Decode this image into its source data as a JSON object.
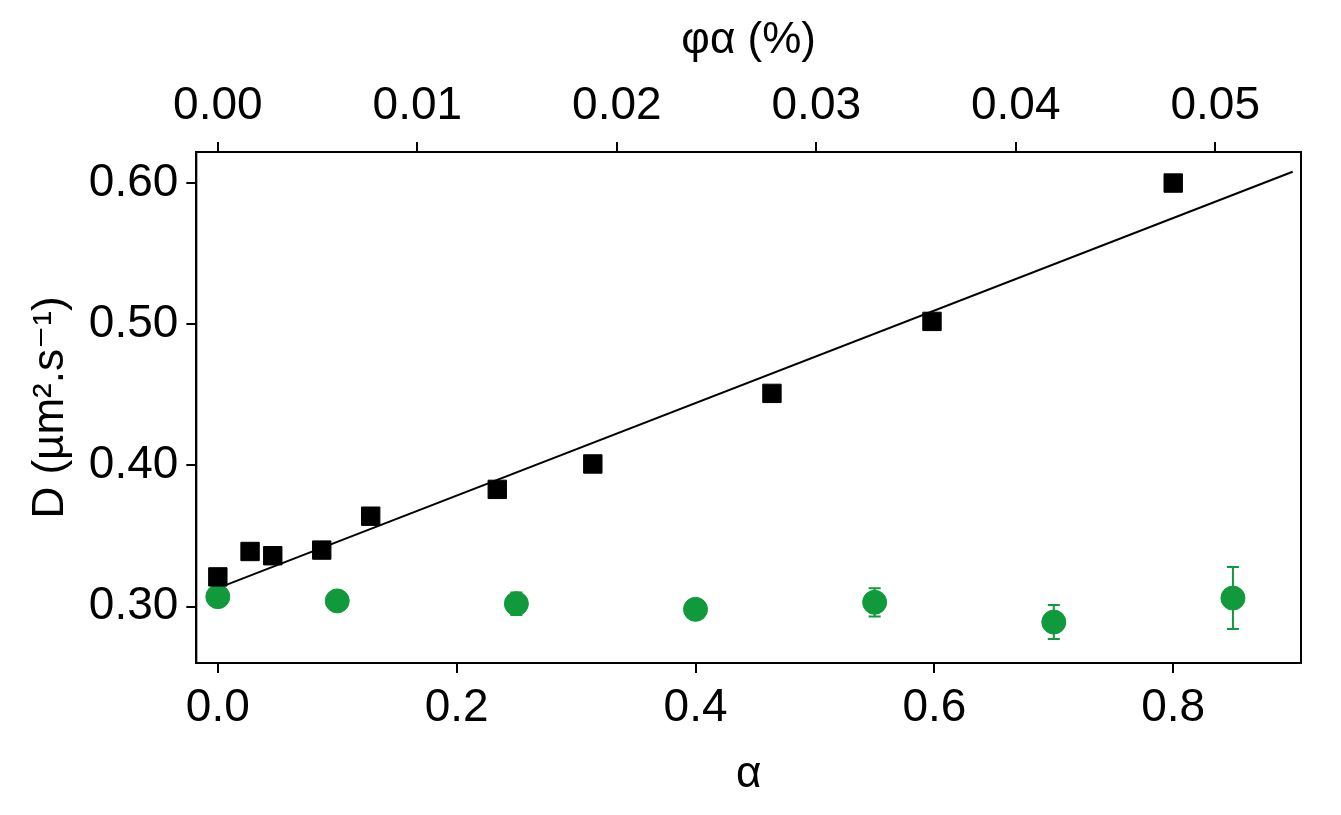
{
  "chart_data": {
    "type": "scatter",
    "x_label": "α",
    "x2_label": "φα (%)",
    "y_label": "D (µm².s⁻¹)",
    "xlim": [
      -0.018,
      0.907
    ],
    "xticks": [
      {
        "value": 0,
        "label": "0.0"
      },
      {
        "value": 0.2,
        "label": "0.2"
      },
      {
        "value": 0.4,
        "label": "0.4"
      },
      {
        "value": 0.6,
        "label": "0.6"
      },
      {
        "value": 0.8,
        "label": "0.8"
      }
    ],
    "x2lim": [
      -0.00108,
      0.0543
    ],
    "x2ticks": [
      {
        "value": 0,
        "label": "0.00"
      },
      {
        "value": 0.01,
        "label": "0.01"
      },
      {
        "value": 0.02,
        "label": "0.02"
      },
      {
        "value": 0.03,
        "label": "0.03"
      },
      {
        "value": 0.04,
        "label": "0.04"
      },
      {
        "value": 0.05,
        "label": "0.05"
      }
    ],
    "ylim": [
      0.26,
      0.622
    ],
    "yticks": [
      {
        "value": 0.3,
        "label": "0.30"
      },
      {
        "value": 0.4,
        "label": "0.40"
      },
      {
        "value": 0.5,
        "label": "0.50"
      },
      {
        "value": 0.6,
        "label": "0.60"
      }
    ],
    "grid": false,
    "series": [
      {
        "type": "scatter",
        "color": "#000000",
        "marker": "square",
        "x": [
          0,
          0.027,
          0.046,
          0.087,
          0.128,
          0.234,
          0.314,
          0.464,
          0.598,
          0.8
        ],
        "values": [
          0.321,
          0.339,
          0.336,
          0.34,
          0.364,
          0.383,
          0.401,
          0.451,
          0.502,
          0.6
        ]
      },
      {
        "type": "line",
        "color": "#000000",
        "line_style": "solid",
        "x": [
          0,
          0.9
        ],
        "values": [
          0.313,
          0.608
        ]
      },
      {
        "type": "scatter",
        "color": "#119a3c",
        "marker": "circle",
        "x": [
          0,
          0.1,
          0.25,
          0.4,
          0.55,
          0.7,
          0.85
        ],
        "values": [
          0.307,
          0.304,
          0.302,
          0.298,
          0.303,
          0.289,
          0.306
        ],
        "errors": [
          0.004,
          0.005,
          0.008,
          0.006,
          0.01,
          0.012,
          0.022
        ]
      }
    ]
  }
}
